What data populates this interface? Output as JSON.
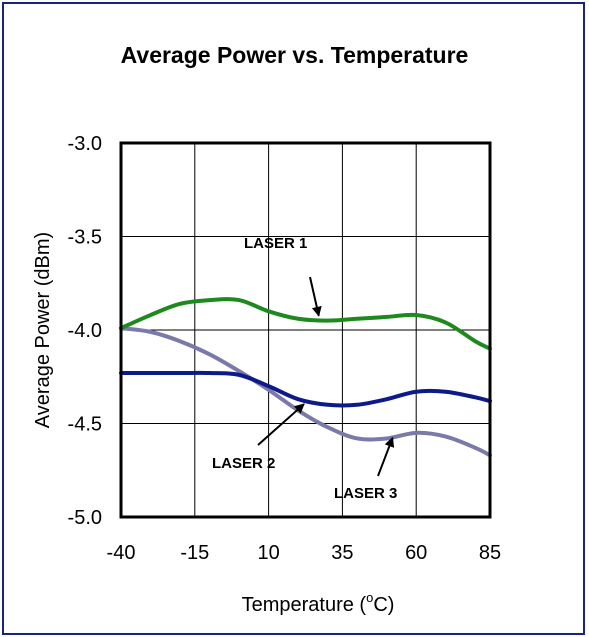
{
  "chart_data": {
    "type": "line",
    "title": "Average Power vs. Temperature",
    "xlabel": "Temperature (",
    "xlabel_sup": "o",
    "xlabel_tail": "C)",
    "ylabel": "Average Power (dBm)",
    "xlim": [
      -40,
      85
    ],
    "ylim": [
      -5.0,
      -3.0
    ],
    "x_ticks": [
      -40,
      -15,
      10,
      35,
      60,
      85
    ],
    "y_ticks": [
      -3.0,
      -3.5,
      -4.0,
      -4.5,
      -5.0
    ],
    "x_tick_labels": [
      "-40",
      "-15",
      "10",
      "35",
      "60",
      "85"
    ],
    "y_tick_labels": [
      "-3.0",
      "-3.5",
      "-4.0",
      "-4.5",
      "-5.0"
    ],
    "grid": true,
    "series": [
      {
        "name": "LASER 1",
        "color": "#1e8a1e",
        "x": [
          -40,
          -30,
          -20,
          -10,
          0,
          10,
          20,
          30,
          40,
          50,
          60,
          70,
          80,
          85
        ],
        "values": [
          -3.99,
          -3.92,
          -3.86,
          -3.84,
          -3.84,
          -3.9,
          -3.94,
          -3.95,
          -3.94,
          -3.93,
          -3.92,
          -3.96,
          -4.06,
          -4.1
        ]
      },
      {
        "name": "LASER 2",
        "color": "#0d1b8a",
        "x": [
          -40,
          -30,
          -20,
          -10,
          0,
          10,
          20,
          30,
          40,
          50,
          60,
          70,
          80,
          85
        ],
        "values": [
          -4.23,
          -4.23,
          -4.23,
          -4.23,
          -4.24,
          -4.3,
          -4.37,
          -4.4,
          -4.4,
          -4.37,
          -4.33,
          -4.33,
          -4.36,
          -4.38
        ]
      },
      {
        "name": "LASER 3",
        "color": "#7a7aaa",
        "x": [
          -40,
          -30,
          -20,
          -10,
          0,
          10,
          20,
          30,
          40,
          50,
          60,
          70,
          80,
          85
        ],
        "values": [
          -3.99,
          -4.01,
          -4.06,
          -4.13,
          -4.22,
          -4.32,
          -4.43,
          -4.52,
          -4.58,
          -4.58,
          -4.55,
          -4.57,
          -4.63,
          -4.67
        ]
      }
    ],
    "annotations": [
      {
        "text": "LASER 1",
        "series": "LASER 1"
      },
      {
        "text": "LASER 2",
        "series": "LASER 2"
      },
      {
        "text": "LASER 3",
        "series": "LASER 3"
      }
    ]
  }
}
